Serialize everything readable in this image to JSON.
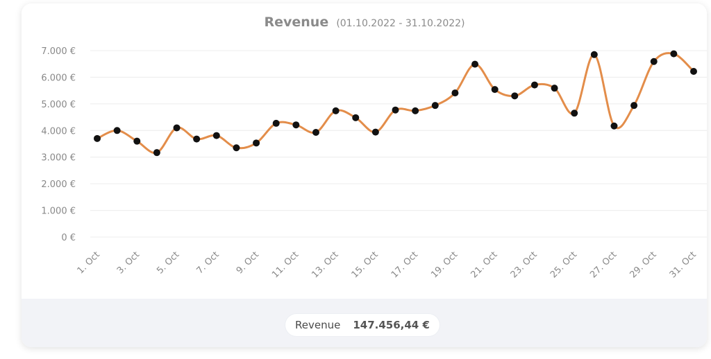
{
  "chart_data": {
    "type": "line",
    "title": "Revenue",
    "subtitle": "(01.10.2022 - 31.10.2022)",
    "xlabel": "",
    "ylabel": "",
    "ylim": [
      0,
      7000
    ],
    "yticks": [
      {
        "value": 0,
        "label": "0 €"
      },
      {
        "value": 1000,
        "label": "1.000 €"
      },
      {
        "value": 2000,
        "label": "2.000 €"
      },
      {
        "value": 3000,
        "label": "3.000 €"
      },
      {
        "value": 4000,
        "label": "4.000 €"
      },
      {
        "value": 5000,
        "label": "5.000 €"
      },
      {
        "value": 6000,
        "label": "6.000 €"
      },
      {
        "value": 7000,
        "label": "7.000 €"
      }
    ],
    "x": [
      "1. Oct",
      "2. Oct",
      "3. Oct",
      "4. Oct",
      "5. Oct",
      "6. Oct",
      "7. Oct",
      "8. Oct",
      "9. Oct",
      "10. Oct",
      "11. Oct",
      "12. Oct",
      "13. Oct",
      "14. Oct",
      "15. Oct",
      "16. Oct",
      "17. Oct",
      "18. Oct",
      "19. Oct",
      "20. Oct",
      "21. Oct",
      "22. Oct",
      "23. Oct",
      "24. Oct",
      "25. Oct",
      "26. Oct",
      "27. Oct",
      "28. Oct",
      "29. Oct",
      "30. Oct",
      "31. Oct"
    ],
    "xtick_labels_every": 2,
    "series": [
      {
        "name": "Revenue",
        "color": "#e38d4a",
        "marker_color": "#111111",
        "values": [
          3700,
          4000,
          3600,
          3170,
          4100,
          3680,
          3810,
          3350,
          3530,
          4270,
          4210,
          3930,
          4740,
          4480,
          3940,
          4770,
          4740,
          4940,
          5410,
          6490,
          5540,
          5300,
          5710,
          5590,
          4650,
          6850,
          4170,
          4940,
          6590,
          6880,
          6220
        ]
      }
    ],
    "grid": true,
    "legend": {
      "label": "Revenue",
      "total": "147.456,44 €",
      "placement": "bottom-center"
    }
  }
}
